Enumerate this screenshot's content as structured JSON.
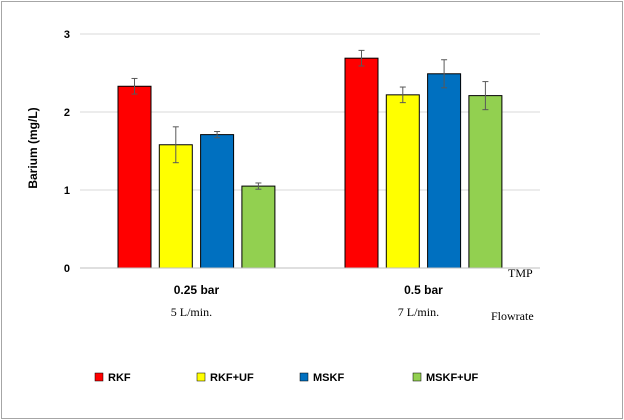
{
  "chart_data": {
    "type": "bar",
    "title": "",
    "ylabel": "Barium (mg/L)",
    "xlabel": "TMP",
    "secondary_label": "Flowrate",
    "ylim": [
      0,
      3
    ],
    "yticks": [
      0,
      1,
      2,
      3
    ],
    "grid": "horizontal",
    "categories": [
      "0.25 bar",
      "0.5 bar"
    ],
    "flowrates": [
      "5 L/min.",
      "7 L/min."
    ],
    "legend_position": "bottom",
    "series": [
      {
        "name": "RKF",
        "color": "#ff0000",
        "values": [
          2.33,
          2.69
        ],
        "errors": [
          0.1,
          0.1
        ]
      },
      {
        "name": "RKF+UF",
        "color": "#ffff00",
        "values": [
          1.58,
          2.22
        ],
        "errors": [
          0.23,
          0.1
        ]
      },
      {
        "name": "MSKF",
        "color": "#0070c0",
        "values": [
          1.71,
          2.49
        ],
        "errors": [
          0.04,
          0.18
        ]
      },
      {
        "name": "MSKF+UF",
        "color": "#92d050",
        "values": [
          1.05,
          2.21
        ],
        "errors": [
          0.04,
          0.18
        ]
      }
    ]
  }
}
